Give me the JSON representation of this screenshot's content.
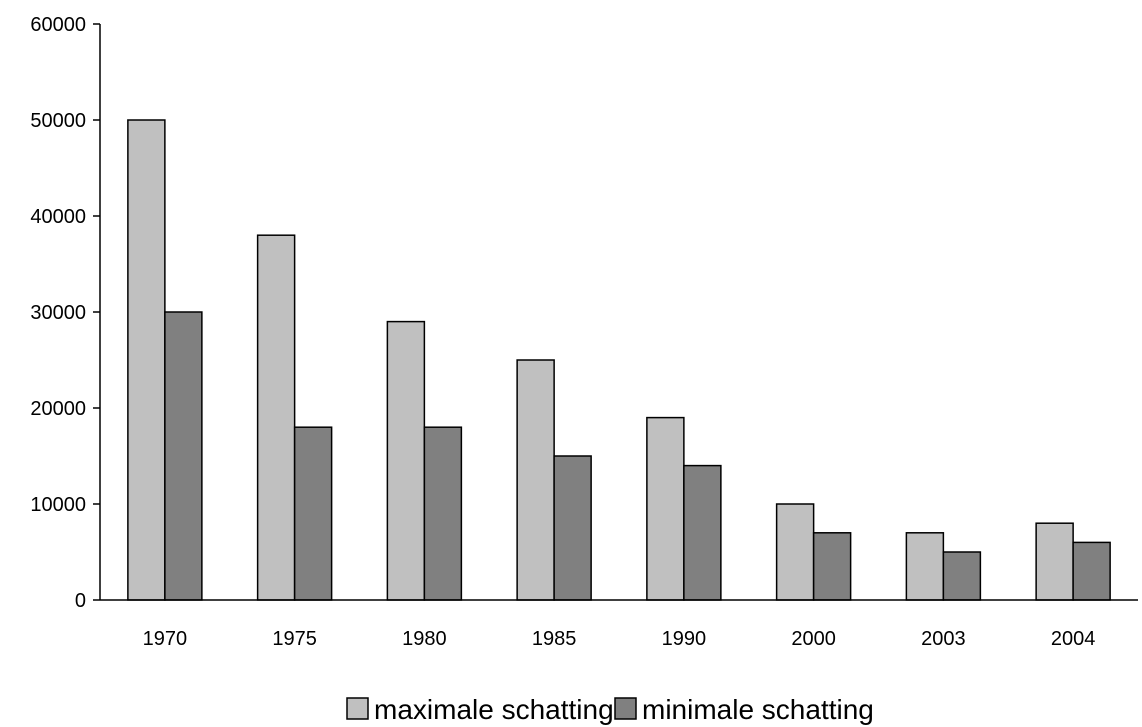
{
  "chart_data": {
    "type": "bar",
    "categories": [
      "1970",
      "1975",
      "1980",
      "1985",
      "1990",
      "2000",
      "2003",
      "2004"
    ],
    "series": [
      {
        "name": "maximale schatting",
        "values": [
          50000,
          38000,
          29000,
          25000,
          19000,
          10000,
          7000,
          8000
        ],
        "color": "#c0c0c0"
      },
      {
        "name": "minimale schatting",
        "values": [
          30000,
          18000,
          18000,
          15000,
          14000,
          7000,
          5000,
          6000
        ],
        "color": "#808080"
      }
    ],
    "y_ticks": [
      "0",
      "10000",
      "20000",
      "30000",
      "40000",
      "50000",
      "60000"
    ],
    "ylim": [
      0,
      60000
    ],
    "grid": false,
    "legend_position": "bottom"
  }
}
